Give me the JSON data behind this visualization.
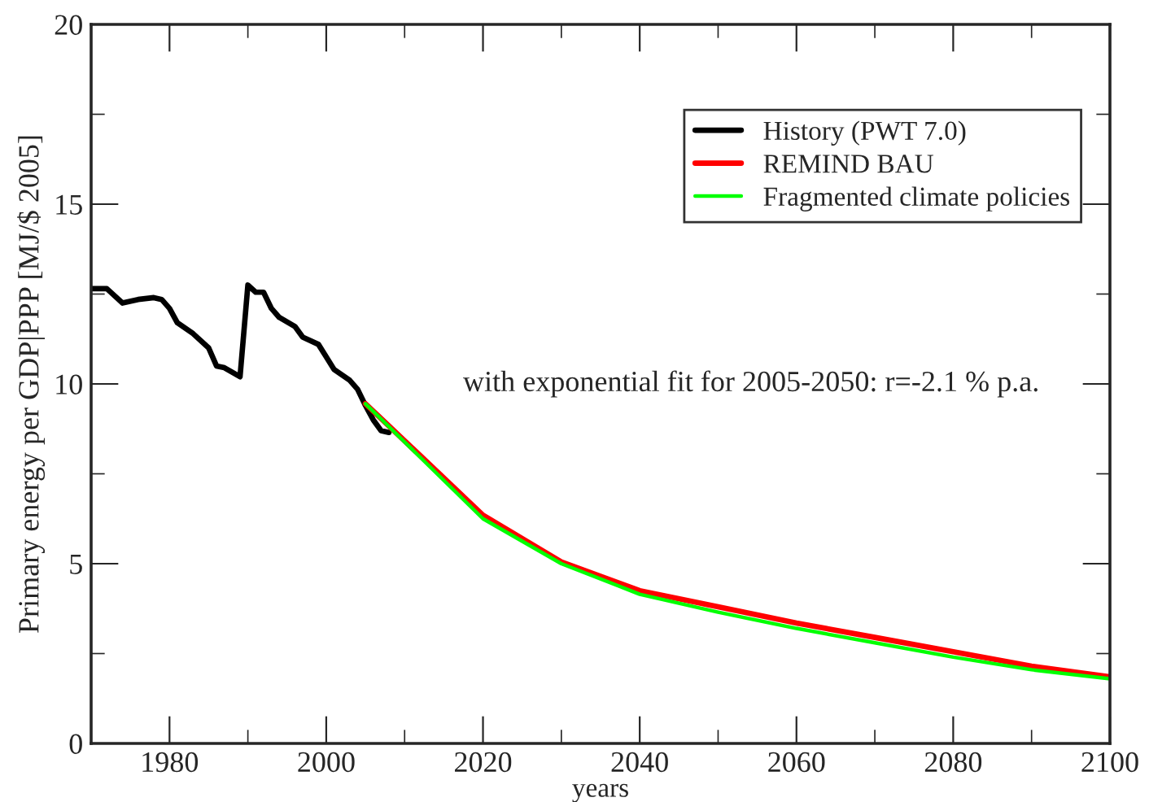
{
  "chart_data": {
    "type": "line",
    "xlabel": "years",
    "ylabel": "Primary energy per GDP|PPP [MJ/$ 2005]",
    "xlim": [
      1970,
      2100
    ],
    "xticks": [
      1980,
      2000,
      2020,
      2040,
      2060,
      2080,
      2100
    ],
    "ylim": [
      0,
      20
    ],
    "yticks": [
      0,
      5,
      10,
      15,
      20
    ],
    "grid": false,
    "legend": "top right",
    "marker": "none",
    "line_style": "solid",
    "annotations": [
      "with exponential fit for 2005-2050: r=-2.1 % p.a."
    ],
    "series": [
      {
        "name": "History (PWT 7.0)",
        "color": "#000000",
        "x": [
          1970,
          1972,
          1974,
          1976,
          1978,
          1979,
          1980,
          1981,
          1983,
          1985,
          1986,
          1987,
          1989,
          1990,
          1991,
          1992,
          1993,
          1994,
          1996,
          1997,
          1999,
          2000,
          2001,
          2003,
          2004,
          2005,
          2006,
          2007,
          2008
        ],
        "values": [
          12.65,
          12.65,
          12.25,
          12.35,
          12.4,
          12.35,
          12.1,
          11.7,
          11.4,
          11.0,
          10.5,
          10.45,
          10.2,
          12.75,
          12.55,
          12.55,
          12.1,
          11.85,
          11.6,
          11.3,
          11.1,
          10.75,
          10.4,
          10.1,
          9.85,
          9.4,
          9.0,
          8.7,
          8.65
        ]
      },
      {
        "name": "REMIND BAU",
        "color": "#ff0000",
        "x": [
          2005,
          2020,
          2030,
          2040,
          2050,
          2060,
          2070,
          2080,
          2090,
          2100
        ],
        "values": [
          9.45,
          6.35,
          5.05,
          4.25,
          3.8,
          3.35,
          2.95,
          2.55,
          2.15,
          1.85
        ]
      },
      {
        "name": "Fragmented climate policies",
        "color": "#00ff00",
        "x": [
          2005,
          2020,
          2030,
          2040,
          2050,
          2060,
          2070,
          2080,
          2090,
          2100
        ],
        "values": [
          9.45,
          6.25,
          5.0,
          4.15,
          3.65,
          3.2,
          2.8,
          2.4,
          2.05,
          1.8
        ]
      }
    ]
  }
}
